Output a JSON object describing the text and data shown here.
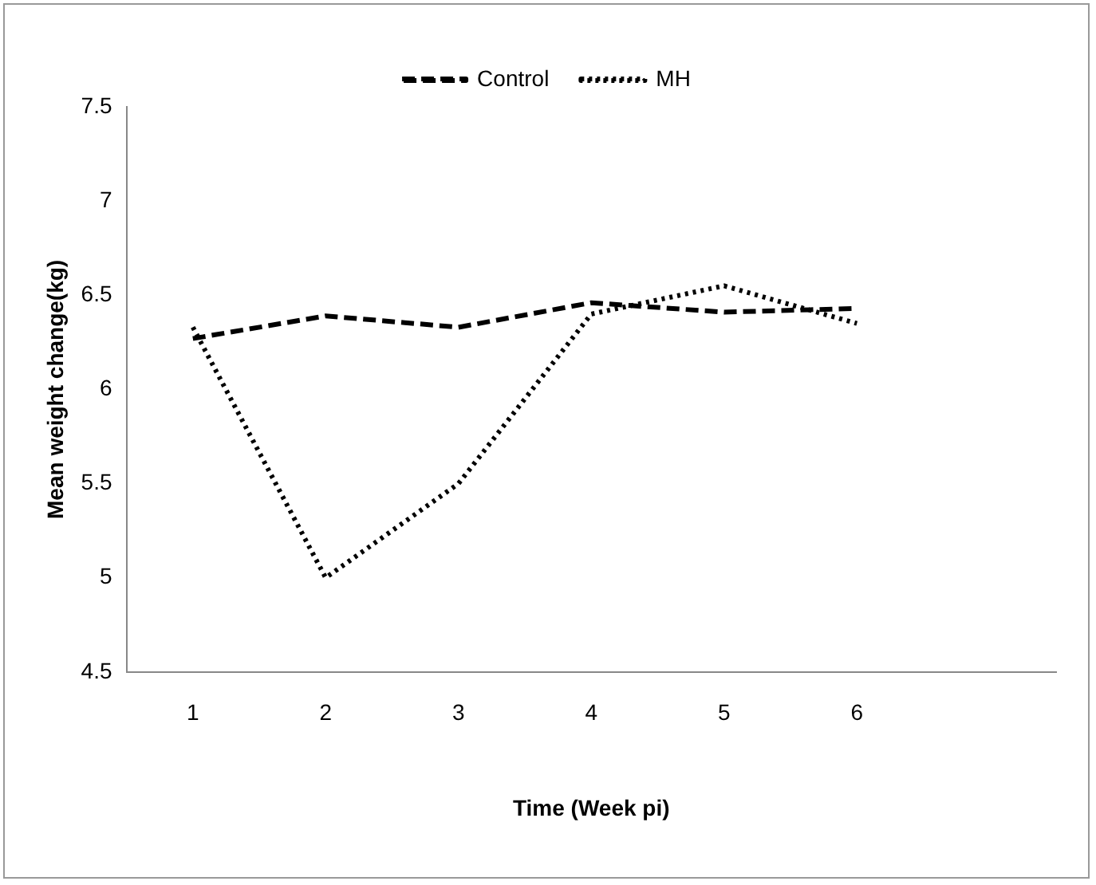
{
  "chart_data": {
    "type": "line",
    "xlabel": "Time (Week pi)",
    "ylabel": "Mean weight change(kg)",
    "categories": [
      "1",
      "2",
      "3",
      "4",
      "5",
      "6",
      null
    ],
    "ylim": [
      4.5,
      7.5
    ],
    "yticks": [
      4.5,
      5,
      5.5,
      6,
      6.5,
      7,
      7.5
    ],
    "grid": false,
    "legend": "top",
    "marker": "none",
    "series": [
      {
        "name": "Control",
        "color": "#000000",
        "line_style": "dashed",
        "values": [
          6.27,
          6.39,
          6.33,
          6.46,
          6.41,
          6.43,
          null
        ]
      },
      {
        "name": "MH",
        "color": "#000000",
        "line_style": "dotted",
        "values": [
          6.33,
          5.0,
          5.5,
          6.4,
          6.55,
          6.35,
          null
        ]
      }
    ]
  }
}
